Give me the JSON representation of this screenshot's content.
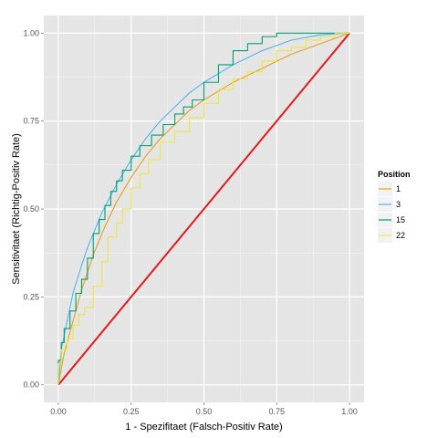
{
  "chart_data": {
    "type": "line",
    "title": "",
    "xlabel": "1 - Spezifitaet (Falsch-Positiv Rate)",
    "ylabel": "Sensitivitaet (Richtig-Positiv Rate)",
    "xlim": [
      -0.05,
      1.05
    ],
    "ylim": [
      -0.05,
      1.05
    ],
    "x_ticks": [
      "0.00",
      "0.25",
      "0.50",
      "0.75",
      "1.00"
    ],
    "y_ticks": [
      "0.00",
      "0.25",
      "0.50",
      "0.75",
      "1.00"
    ],
    "x_tick_values": [
      0,
      0.25,
      0.5,
      0.75,
      1.0
    ],
    "y_tick_values": [
      0,
      0.25,
      0.5,
      0.75,
      1.0
    ],
    "grid": true,
    "legend": {
      "title": "Position",
      "placement": "right"
    },
    "diagonal": {
      "color": "#e41a1c",
      "points": [
        [
          0,
          0
        ],
        [
          1,
          1
        ]
      ]
    },
    "series": [
      {
        "name": "1",
        "color": "#e6a118",
        "step": false,
        "points": [
          [
            0,
            0
          ],
          [
            0.02,
            0.09
          ],
          [
            0.05,
            0.18
          ],
          [
            0.08,
            0.27
          ],
          [
            0.12,
            0.37
          ],
          [
            0.16,
            0.45
          ],
          [
            0.2,
            0.52
          ],
          [
            0.25,
            0.59
          ],
          [
            0.3,
            0.65
          ],
          [
            0.35,
            0.7
          ],
          [
            0.4,
            0.74
          ],
          [
            0.45,
            0.78
          ],
          [
            0.5,
            0.81
          ],
          [
            0.6,
            0.86
          ],
          [
            0.7,
            0.9
          ],
          [
            0.8,
            0.94
          ],
          [
            0.9,
            0.97
          ],
          [
            1,
            1
          ]
        ]
      },
      {
        "name": "3",
        "color": "#56b4e9",
        "step": false,
        "points": [
          [
            0,
            0
          ],
          [
            0.01,
            0.1
          ],
          [
            0.03,
            0.18
          ],
          [
            0.05,
            0.26
          ],
          [
            0.08,
            0.34
          ],
          [
            0.1,
            0.39
          ],
          [
            0.15,
            0.49
          ],
          [
            0.2,
            0.57
          ],
          [
            0.25,
            0.64
          ],
          [
            0.3,
            0.7
          ],
          [
            0.35,
            0.75
          ],
          [
            0.4,
            0.79
          ],
          [
            0.45,
            0.83
          ],
          [
            0.5,
            0.86
          ],
          [
            0.6,
            0.91
          ],
          [
            0.7,
            0.95
          ],
          [
            0.8,
            0.98
          ],
          [
            0.9,
            0.995
          ],
          [
            1,
            1
          ]
        ]
      },
      {
        "name": "15",
        "color": "#009e73",
        "step": true,
        "points": [
          [
            0,
            0
          ],
          [
            0.01,
            0.07
          ],
          [
            0.02,
            0.12
          ],
          [
            0.04,
            0.16
          ],
          [
            0.06,
            0.21
          ],
          [
            0.08,
            0.26
          ],
          [
            0.1,
            0.3
          ],
          [
            0.12,
            0.36
          ],
          [
            0.14,
            0.43
          ],
          [
            0.16,
            0.47
          ],
          [
            0.18,
            0.51
          ],
          [
            0.2,
            0.55
          ],
          [
            0.22,
            0.58
          ],
          [
            0.25,
            0.61
          ],
          [
            0.28,
            0.65
          ],
          [
            0.32,
            0.68
          ],
          [
            0.36,
            0.71
          ],
          [
            0.4,
            0.74
          ],
          [
            0.43,
            0.77
          ],
          [
            0.46,
            0.79
          ],
          [
            0.5,
            0.81
          ],
          [
            0.55,
            0.86
          ],
          [
            0.6,
            0.91
          ],
          [
            0.65,
            0.95
          ],
          [
            0.7,
            0.97
          ],
          [
            0.75,
            0.99
          ],
          [
            0.85,
            1
          ],
          [
            1,
            1
          ]
        ]
      },
      {
        "name": "22",
        "color": "#f0e442",
        "step": true,
        "points": [
          [
            0,
            0
          ],
          [
            0.01,
            0.06
          ],
          [
            0.03,
            0.1
          ],
          [
            0.05,
            0.13
          ],
          [
            0.07,
            0.17
          ],
          [
            0.09,
            0.2
          ],
          [
            0.12,
            0.22
          ],
          [
            0.15,
            0.28
          ],
          [
            0.17,
            0.35
          ],
          [
            0.2,
            0.42
          ],
          [
            0.22,
            0.46
          ],
          [
            0.25,
            0.5
          ],
          [
            0.28,
            0.56
          ],
          [
            0.31,
            0.6
          ],
          [
            0.35,
            0.64
          ],
          [
            0.4,
            0.69
          ],
          [
            0.45,
            0.72
          ],
          [
            0.5,
            0.76
          ],
          [
            0.55,
            0.8
          ],
          [
            0.6,
            0.84
          ],
          [
            0.65,
            0.87
          ],
          [
            0.7,
            0.89
          ],
          [
            0.75,
            0.92
          ],
          [
            0.8,
            0.95
          ],
          [
            0.85,
            0.96
          ],
          [
            0.9,
            0.98
          ],
          [
            0.95,
            0.99
          ],
          [
            1,
            1
          ]
        ]
      }
    ]
  }
}
